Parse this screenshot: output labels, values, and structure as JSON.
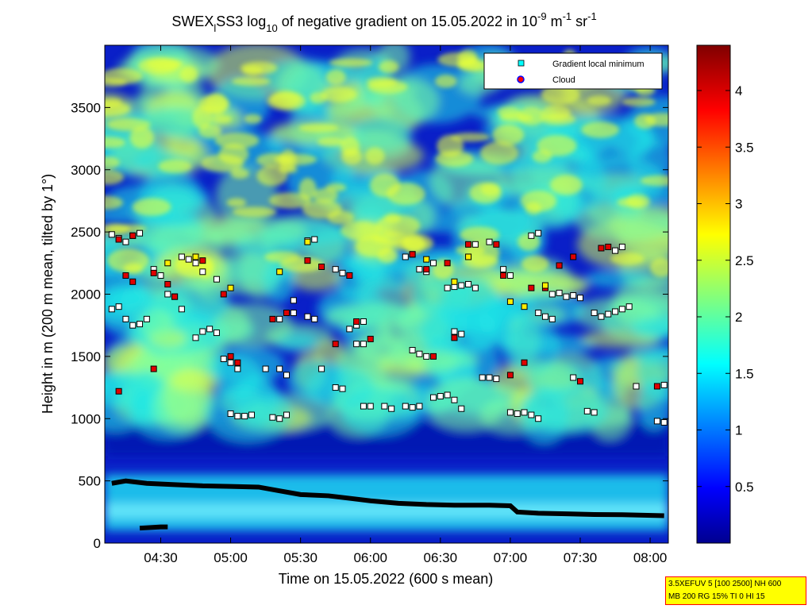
{
  "chart_data": {
    "type": "heatmap",
    "title_parts": {
      "prefix": "SWEX",
      "sub1": "l",
      "mid": "SS3 log",
      "sub2": "10",
      "rest": " of negative gradient on 15.05.2022 in 10",
      "exp1": "-9",
      "unit1": " m",
      "exp2": "-1",
      "unit2": " sr",
      "exp3": "-1"
    },
    "xlabel": "Time on 15.05.2022 (600 s mean)",
    "ylabel": "Height in m (200 m mean, tilted by 1°)",
    "x_range_hours": [
      4.1,
      8.13
    ],
    "y_range_m": [
      0,
      4000
    ],
    "x_ticks": [
      {
        "value": 4.5,
        "label": "04:30"
      },
      {
        "value": 5.0,
        "label": "05:00"
      },
      {
        "value": 5.5,
        "label": "05:30"
      },
      {
        "value": 6.0,
        "label": "06:00"
      },
      {
        "value": 6.5,
        "label": "06:30"
      },
      {
        "value": 7.0,
        "label": "07:00"
      },
      {
        "value": 7.5,
        "label": "07:30"
      },
      {
        "value": 8.0,
        "label": "08:00"
      }
    ],
    "y_ticks": [
      0,
      500,
      1000,
      1500,
      2000,
      2500,
      3000,
      3500
    ],
    "colorbar": {
      "range": [
        0,
        4.4
      ],
      "ticks": [
        0.5,
        1,
        1.5,
        2,
        2.5,
        3,
        3.5,
        4
      ],
      "colormap": "jet"
    },
    "legend": {
      "placement": "top-right",
      "entries": [
        {
          "label": "Gradient local minimum",
          "marker": "square",
          "color": "#00ffff"
        },
        {
          "label": "Cloud",
          "marker": "circle",
          "color": "#ff0000"
        }
      ]
    },
    "series": [
      {
        "kind": "boundary-layer-top",
        "points": [
          [
            4.15,
            480
          ],
          [
            4.25,
            500
          ],
          [
            4.4,
            480
          ],
          [
            4.6,
            470
          ],
          [
            4.8,
            460
          ],
          [
            5.0,
            455
          ],
          [
            5.2,
            450
          ],
          [
            5.35,
            420
          ],
          [
            5.5,
            390
          ],
          [
            5.7,
            380
          ],
          [
            5.85,
            360
          ],
          [
            6.0,
            340
          ],
          [
            6.2,
            320
          ],
          [
            6.4,
            310
          ],
          [
            6.6,
            305
          ],
          [
            6.85,
            305
          ],
          [
            7.0,
            300
          ],
          [
            7.05,
            250
          ],
          [
            7.2,
            240
          ],
          [
            7.4,
            235
          ],
          [
            7.6,
            230
          ],
          [
            7.8,
            228
          ],
          [
            8.1,
            220
          ]
        ]
      },
      {
        "kind": "low-segment",
        "points": [
          [
            4.35,
            120
          ],
          [
            4.5,
            130
          ],
          [
            4.55,
            130
          ]
        ]
      },
      {
        "kind": "gradient-minima",
        "points": [
          [
            4.15,
            1880
          ],
          [
            4.2,
            1900
          ],
          [
            4.25,
            1800
          ],
          [
            4.3,
            1750
          ],
          [
            4.35,
            1760
          ],
          [
            4.4,
            1800
          ],
          [
            4.15,
            2480
          ],
          [
            4.2,
            2450
          ],
          [
            4.25,
            2420
          ],
          [
            4.3,
            2470
          ],
          [
            4.35,
            2490
          ],
          [
            4.45,
            2200
          ],
          [
            4.5,
            2150
          ],
          [
            4.55,
            2000
          ],
          [
            4.6,
            1980
          ],
          [
            4.65,
            1880
          ],
          [
            4.75,
            1650
          ],
          [
            4.8,
            1700
          ],
          [
            4.85,
            1720
          ],
          [
            4.9,
            1690
          ],
          [
            4.65,
            2300
          ],
          [
            4.7,
            2280
          ],
          [
            4.75,
            2250
          ],
          [
            4.8,
            2180
          ],
          [
            4.9,
            2120
          ],
          [
            4.95,
            1480
          ],
          [
            5.0,
            1450
          ],
          [
            5.05,
            1400
          ],
          [
            5.0,
            1040
          ],
          [
            5.05,
            1020
          ],
          [
            5.1,
            1020
          ],
          [
            5.15,
            1030
          ],
          [
            5.25,
            1400
          ],
          [
            5.35,
            1400
          ],
          [
            5.4,
            1350
          ],
          [
            5.3,
            1010
          ],
          [
            5.35,
            1000
          ],
          [
            5.4,
            1030
          ],
          [
            5.35,
            1800
          ],
          [
            5.45,
            1850
          ],
          [
            5.45,
            1950
          ],
          [
            5.55,
            2430
          ],
          [
            5.6,
            2440
          ],
          [
            5.55,
            1820
          ],
          [
            5.6,
            1800
          ],
          [
            5.65,
            1400
          ],
          [
            5.75,
            1250
          ],
          [
            5.8,
            1240
          ],
          [
            5.75,
            2200
          ],
          [
            5.8,
            2170
          ],
          [
            5.85,
            1720
          ],
          [
            5.9,
            1750
          ],
          [
            5.95,
            1780
          ],
          [
            5.9,
            1600
          ],
          [
            5.95,
            1600
          ],
          [
            5.95,
            1100
          ],
          [
            6.0,
            1100
          ],
          [
            6.1,
            1100
          ],
          [
            6.15,
            1080
          ],
          [
            6.25,
            1100
          ],
          [
            6.3,
            1090
          ],
          [
            6.35,
            1100
          ],
          [
            6.25,
            2300
          ],
          [
            6.3,
            2320
          ],
          [
            6.35,
            2200
          ],
          [
            6.4,
            2180
          ],
          [
            6.45,
            2250
          ],
          [
            6.3,
            1550
          ],
          [
            6.35,
            1520
          ],
          [
            6.4,
            1500
          ],
          [
            6.45,
            1170
          ],
          [
            6.5,
            1180
          ],
          [
            6.55,
            1190
          ],
          [
            6.6,
            1150
          ],
          [
            6.65,
            1080
          ],
          [
            6.55,
            2050
          ],
          [
            6.6,
            2060
          ],
          [
            6.65,
            2070
          ],
          [
            6.7,
            2080
          ],
          [
            6.75,
            2050
          ],
          [
            6.6,
            1700
          ],
          [
            6.65,
            1680
          ],
          [
            6.8,
            1330
          ],
          [
            6.85,
            1330
          ],
          [
            6.9,
            1320
          ],
          [
            6.75,
            2400
          ],
          [
            6.85,
            2420
          ],
          [
            6.95,
            2200
          ],
          [
            7.0,
            2150
          ],
          [
            7.0,
            1050
          ],
          [
            7.05,
            1040
          ],
          [
            7.1,
            1050
          ],
          [
            7.15,
            1030
          ],
          [
            7.2,
            1000
          ],
          [
            7.15,
            2470
          ],
          [
            7.2,
            2490
          ],
          [
            7.2,
            1850
          ],
          [
            7.25,
            1820
          ],
          [
            7.3,
            1800
          ],
          [
            7.3,
            2000
          ],
          [
            7.35,
            2010
          ],
          [
            7.4,
            1980
          ],
          [
            7.45,
            1990
          ],
          [
            7.5,
            1970
          ],
          [
            7.45,
            1330
          ],
          [
            7.55,
            1060
          ],
          [
            7.6,
            1050
          ],
          [
            7.6,
            1850
          ],
          [
            7.65,
            1820
          ],
          [
            7.7,
            1840
          ],
          [
            7.75,
            1860
          ],
          [
            7.8,
            1880
          ],
          [
            7.85,
            1900
          ],
          [
            7.75,
            2350
          ],
          [
            7.8,
            2380
          ],
          [
            7.9,
            1260
          ],
          [
            8.05,
            980
          ],
          [
            8.1,
            970
          ],
          [
            8.1,
            1270
          ]
        ]
      },
      {
        "kind": "cloud",
        "points": [
          [
            4.2,
            2440
          ],
          [
            4.3,
            2470
          ],
          [
            4.25,
            2150
          ],
          [
            4.3,
            2100
          ],
          [
            4.45,
            2170
          ],
          [
            4.45,
            1400
          ],
          [
            4.55,
            2080
          ],
          [
            4.6,
            1980
          ],
          [
            4.2,
            1220
          ],
          [
            4.8,
            2270
          ],
          [
            4.95,
            2000
          ],
          [
            5.0,
            1500
          ],
          [
            5.05,
            1450
          ],
          [
            5.3,
            1800
          ],
          [
            5.4,
            1850
          ],
          [
            5.55,
            2270
          ],
          [
            5.65,
            2220
          ],
          [
            5.75,
            1600
          ],
          [
            5.85,
            2150
          ],
          [
            5.9,
            1780
          ],
          [
            6.0,
            1640
          ],
          [
            6.3,
            2320
          ],
          [
            6.4,
            2200
          ],
          [
            6.45,
            1500
          ],
          [
            6.55,
            2250
          ],
          [
            6.6,
            1650
          ],
          [
            6.7,
            2400
          ],
          [
            6.9,
            2400
          ],
          [
            6.95,
            2150
          ],
          [
            7.0,
            1350
          ],
          [
            7.1,
            1450
          ],
          [
            7.15,
            2050
          ],
          [
            7.25,
            2050
          ],
          [
            7.35,
            2230
          ],
          [
            7.45,
            2300
          ],
          [
            7.5,
            1300
          ],
          [
            7.65,
            2370
          ],
          [
            7.7,
            2380
          ],
          [
            8.05,
            1260
          ]
        ]
      },
      {
        "kind": "cloud-yellow",
        "points": [
          [
            4.55,
            2250
          ],
          [
            4.75,
            2300
          ],
          [
            5.0,
            2050
          ],
          [
            5.35,
            2180
          ],
          [
            5.55,
            2420
          ],
          [
            6.4,
            2280
          ],
          [
            6.7,
            2300
          ],
          [
            7.0,
            1940
          ],
          [
            7.1,
            1900
          ],
          [
            7.25,
            2070
          ],
          [
            6.6,
            2100
          ]
        ]
      }
    ]
  },
  "info_box": {
    "line1": "3.5XEFUV 5 [100 2500] NH 600",
    "line2": "MB 200 RG 15% TI 0 HI 15"
  }
}
